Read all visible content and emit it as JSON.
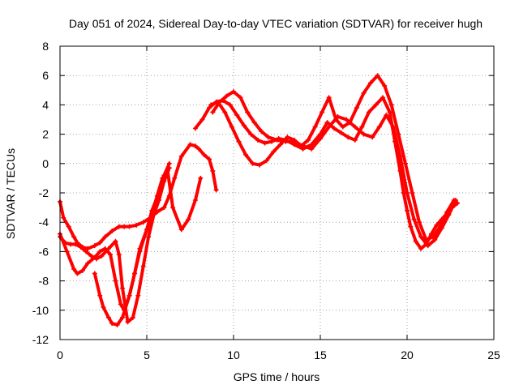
{
  "chart_data": {
    "type": "scatter",
    "title": "Day 051 of 2024, Sidereal Day-to-day VTEC variation (SDTVAR) for receiver hugh",
    "xlabel": "GPS time / hours",
    "ylabel": "SDTVAR / TECUs",
    "xlim": [
      0,
      25
    ],
    "ylim": [
      -12,
      8
    ],
    "xticks": [
      "0",
      "5",
      "10",
      "15",
      "20",
      "25"
    ],
    "yticks": [
      "-12",
      "-10",
      "-8",
      "-6",
      "-4",
      "-2",
      "0",
      "2",
      "4",
      "6",
      "8"
    ],
    "xtick_values": [
      0,
      5,
      10,
      15,
      20,
      25
    ],
    "ytick_values": [
      -12,
      -10,
      -8,
      -6,
      -4,
      -2,
      0,
      2,
      4,
      6,
      8
    ],
    "grid": true,
    "marker": "+",
    "color": "#ff0000",
    "series": [
      {
        "name": "trace-1",
        "x": [
          0.0,
          0.2,
          0.5,
          0.8,
          1.0,
          1.3,
          1.6,
          2.0,
          2.3,
          2.6,
          3.0,
          3.4,
          3.7,
          4.0,
          4.4,
          4.8,
          5.2,
          5.6,
          6.0,
          6.3,
          6.6,
          7.0,
          7.5,
          7.8,
          8.0,
          8.3,
          8.6,
          8.8,
          9.0
        ],
        "y": [
          -2.6,
          -3.7,
          -4.3,
          -5.0,
          -5.4,
          -5.7,
          -5.8,
          -5.6,
          -5.4,
          -5.0,
          -4.6,
          -4.3,
          -4.3,
          -4.3,
          -4.2,
          -4.0,
          -3.7,
          -3.3,
          -3.0,
          -2.2,
          -1.0,
          0.5,
          1.3,
          1.2,
          1.0,
          0.6,
          0.3,
          -0.5,
          -1.8
        ]
      },
      {
        "name": "trace-2",
        "x": [
          0.0,
          0.4,
          0.8,
          1.0,
          1.3,
          1.6,
          2.0,
          2.3,
          2.6,
          2.9,
          3.2,
          3.5,
          3.7,
          4.0,
          4.3,
          4.6,
          5.0,
          5.3,
          5.6,
          5.9,
          6.2,
          6.5,
          7.0,
          7.4,
          7.8,
          8.1
        ],
        "y": [
          -4.8,
          -6.0,
          -7.2,
          -7.5,
          -7.3,
          -6.8,
          -6.4,
          -6.0,
          -5.8,
          -6.2,
          -8.0,
          -9.6,
          -10.0,
          -9.0,
          -7.5,
          -5.8,
          -4.5,
          -3.5,
          -2.2,
          -1.0,
          -0.5,
          -3.0,
          -4.5,
          -3.8,
          -2.5,
          -1.0
        ]
      },
      {
        "name": "trace-3",
        "x": [
          0.0,
          0.3,
          0.6,
          0.9,
          1.2,
          1.5,
          1.8,
          2.1,
          2.4,
          2.8,
          3.2,
          3.4,
          3.6,
          3.9,
          4.2,
          4.5,
          4.8,
          5.1,
          5.4,
          5.7,
          6.0,
          6.3
        ],
        "y": [
          -5.0,
          -5.4,
          -5.5,
          -5.5,
          -5.7,
          -6.0,
          -6.3,
          -6.5,
          -6.3,
          -5.8,
          -5.3,
          -6.2,
          -8.5,
          -10.8,
          -10.5,
          -9.0,
          -7.0,
          -5.0,
          -3.5,
          -2.5,
          -1.2,
          -0.3
        ]
      },
      {
        "name": "trace-4",
        "x": [
          2.0,
          2.3,
          2.5,
          2.8,
          3.0,
          3.3,
          3.6,
          4.0,
          4.3,
          4.6,
          5.0,
          5.3,
          5.7,
          6.0,
          6.3
        ],
        "y": [
          -7.5,
          -9.0,
          -9.8,
          -10.5,
          -10.9,
          -11.0,
          -10.5,
          -9.0,
          -7.5,
          -6.0,
          -4.5,
          -3.2,
          -2.0,
          -0.8,
          0.0
        ]
      },
      {
        "name": "trace-5",
        "x": [
          7.8,
          8.2,
          8.6,
          9.0,
          9.4,
          9.8,
          10.2,
          10.6,
          11.0,
          11.4,
          11.8,
          12.2,
          12.6,
          13.0,
          13.5,
          14.0,
          14.5,
          15.0,
          15.4,
          15.8,
          16.2,
          16.6,
          17.0,
          17.4,
          17.8,
          18.2,
          18.6,
          19.0,
          19.3,
          19.6,
          19.8,
          20.0,
          20.2,
          20.5,
          20.8,
          21.1,
          21.4,
          21.7,
          22.0,
          22.3,
          22.6,
          22.9
        ],
        "y": [
          2.4,
          3.0,
          3.8,
          4.2,
          4.3,
          4.0,
          3.3,
          2.6,
          2.0,
          1.6,
          1.4,
          1.5,
          1.7,
          1.6,
          1.3,
          1.0,
          1.3,
          2.0,
          2.8,
          2.4,
          2.1,
          1.8,
          1.6,
          2.5,
          3.5,
          4.0,
          4.5,
          3.5,
          1.5,
          -0.5,
          -2.0,
          -3.2,
          -4.3,
          -5.3,
          -5.8,
          -5.5,
          -4.8,
          -4.2,
          -3.8,
          -3.4,
          -3.0,
          -2.7
        ]
      },
      {
        "name": "trace-6",
        "x": [
          8.8,
          9.2,
          9.6,
          10.0,
          10.4,
          10.8,
          11.2,
          11.6,
          12.0,
          12.5,
          13.0,
          13.5,
          14.0,
          14.5,
          15.0,
          15.5,
          16.0,
          16.5,
          17.0,
          17.5,
          18.0,
          18.4,
          18.8,
          19.2,
          19.6,
          20.0,
          20.4,
          20.8,
          21.2,
          21.6,
          22.0,
          22.4,
          22.8
        ],
        "y": [
          3.5,
          4.2,
          4.6,
          4.9,
          4.5,
          3.5,
          2.8,
          2.2,
          1.8,
          1.6,
          1.5,
          1.5,
          1.2,
          1.0,
          1.7,
          2.5,
          3.2,
          3.0,
          2.5,
          2.0,
          1.8,
          2.5,
          3.3,
          2.5,
          0.5,
          -2.0,
          -3.8,
          -5.0,
          -5.6,
          -5.2,
          -4.4,
          -3.5,
          -2.5
        ]
      },
      {
        "name": "trace-7",
        "x": [
          8.7,
          9.1,
          9.5,
          9.9,
          10.3,
          10.7,
          11.1,
          11.5,
          11.9,
          12.3,
          12.7,
          13.1,
          13.5,
          13.9,
          14.3,
          14.7,
          15.1,
          15.5,
          15.9,
          16.3,
          16.7,
          17.1,
          17.5,
          17.9,
          18.3,
          18.7,
          19.1,
          19.5,
          19.9,
          20.3,
          20.7,
          21.1,
          21.5,
          21.9,
          22.3,
          22.7
        ],
        "y": [
          4.0,
          4.2,
          3.5,
          2.5,
          1.5,
          0.6,
          0.0,
          -0.1,
          0.2,
          0.8,
          1.3,
          1.8,
          1.6,
          1.2,
          1.6,
          2.5,
          3.5,
          4.5,
          3.0,
          2.5,
          2.8,
          3.8,
          4.8,
          5.5,
          6.0,
          5.3,
          4.0,
          2.0,
          0.0,
          -2.0,
          -4.0,
          -5.2,
          -5.0,
          -4.3,
          -3.3,
          -2.5
        ]
      }
    ]
  }
}
